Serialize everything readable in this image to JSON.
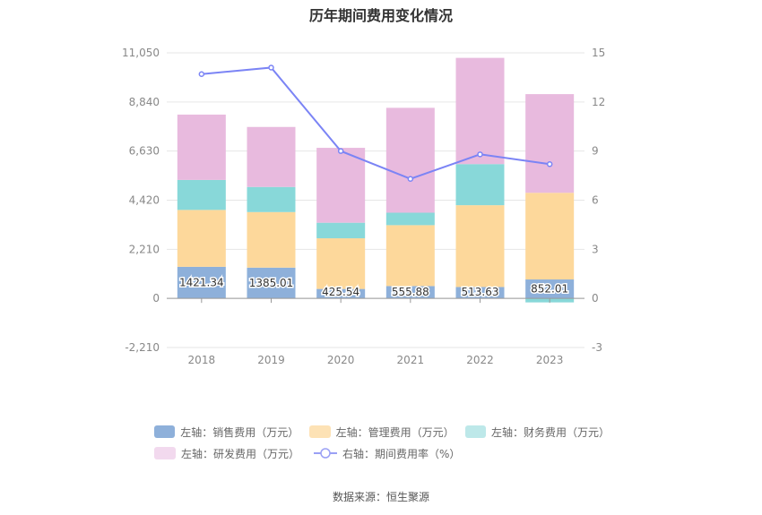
{
  "title": "历年期间费用变化情况",
  "source": "数据来源：恒生聚源",
  "colors": {
    "sales": "#8eb0da",
    "admin": "#fdd89b",
    "finance": "#88d8d9",
    "rnd": "#e8bade",
    "rate": "#7b84f5"
  },
  "legend": {
    "sales": "左轴：销售费用（万元）",
    "admin": "左轴：管理费用（万元）",
    "finance": "左轴：财务费用（万元）",
    "rnd": "左轴：研发费用（万元）",
    "rate": "右轴：期间费用率（%）"
  },
  "chart_data": {
    "type": "bar",
    "stacked": true,
    "categories": [
      "2018",
      "2019",
      "2020",
      "2021",
      "2022",
      "2023"
    ],
    "series": [
      {
        "name": "左轴：销售费用（万元）",
        "key": "sales",
        "axis": "left",
        "values": [
          1421.34,
          1385.01,
          425.54,
          555.88,
          513.63,
          852.01
        ]
      },
      {
        "name": "左轴：管理费用（万元）",
        "key": "admin",
        "axis": "left",
        "values": [
          2560,
          2500,
          2280,
          2740,
          3680,
          3900
        ]
      },
      {
        "name": "左轴：财务费用（万元）",
        "key": "finance",
        "axis": "left",
        "values": [
          1350,
          1130,
          700,
          560,
          1850,
          -180
        ]
      },
      {
        "name": "左轴：研发费用（万元）",
        "key": "rnd",
        "axis": "left",
        "values": [
          2940,
          2700,
          3370,
          4720,
          4780,
          4440
        ]
      },
      {
        "name": "右轴：期间费用率（%）",
        "key": "rate",
        "axis": "right",
        "type": "line",
        "values": [
          13.7,
          14.1,
          9.0,
          7.3,
          8.8,
          8.2
        ]
      }
    ],
    "data_labels": [
      "1421.34",
      "1385.01",
      "425.54",
      "555.88",
      "513.63",
      "852.01"
    ],
    "y_left": {
      "min": -2210,
      "max": 11050,
      "ticks": [
        "-2,210",
        "0",
        "2,210",
        "4,420",
        "6,630",
        "8,840",
        "11,050"
      ]
    },
    "y_right": {
      "min": -3,
      "max": 15,
      "ticks": [
        "-3",
        "0",
        "3",
        "6",
        "9",
        "12",
        "15"
      ]
    },
    "grid": true,
    "legend_position": "bottom"
  }
}
